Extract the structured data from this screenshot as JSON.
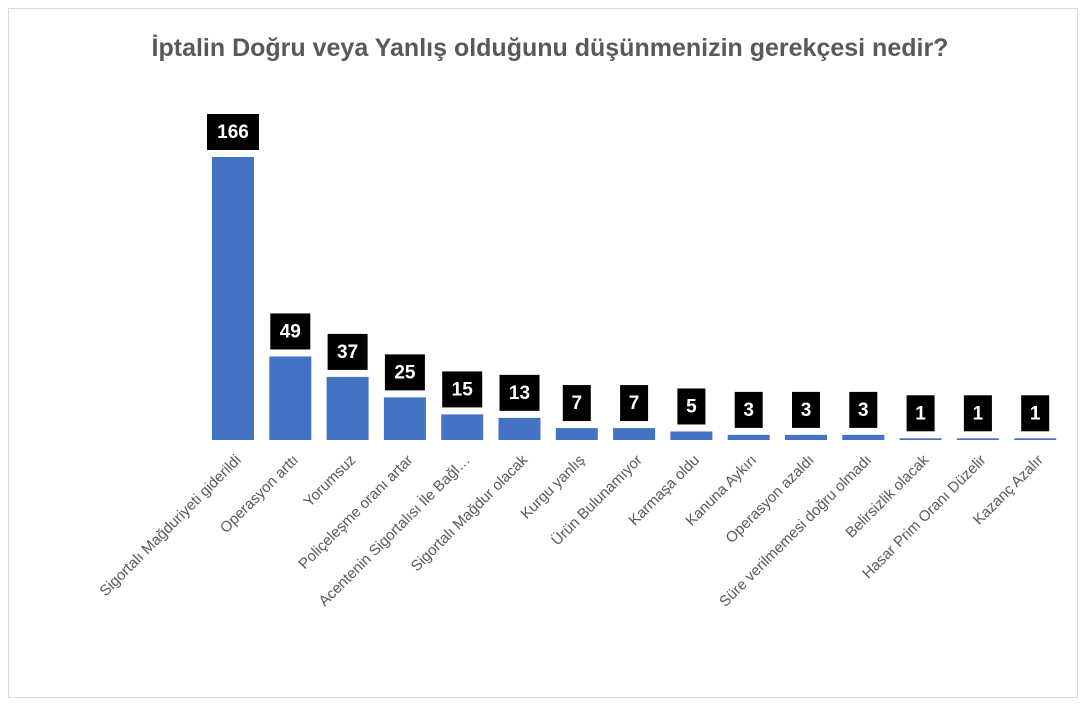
{
  "chart_data": {
    "type": "bar",
    "title": "İptalin Doğru veya Yanlış olduğunu düşünmenizin gerekçesi nedir?",
    "categories": [
      "Sigortalı Mağduriyeti giderildi",
      "Operasyon arttı",
      "Yorumsuz",
      "Poliçeleşme oranı artar",
      "Acentenin Sigortalısı İle Bağl…",
      "Sigortalı Mağdur olacak",
      "Kurgu yanlış",
      "Ürün Bulunamıyor",
      "Karmaşa oldu",
      "Kanuna Aykırı",
      "Operasyon azaldı",
      "Süre verilmemesi doğru olmadı",
      "Belirsizlik olacak",
      "Hasar Prim Oranı Düzelir",
      "Kazanç Azalır"
    ],
    "values": [
      166,
      49,
      37,
      25,
      15,
      13,
      7,
      7,
      5,
      3,
      3,
      3,
      1,
      1,
      1
    ],
    "color": "#4472c4",
    "label_box_color": "#000000"
  }
}
